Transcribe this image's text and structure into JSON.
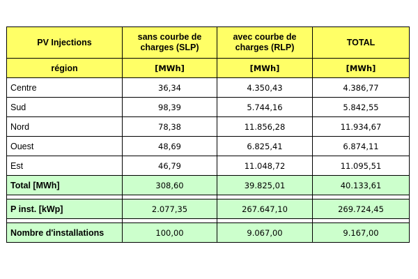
{
  "table": {
    "header": {
      "col1": "PV Injections",
      "col2": "sans courbe de charges (SLP)",
      "col3": "avec courbe de charges (RLP)",
      "col4": "TOTAL"
    },
    "subheader": {
      "col1": "région",
      "col2": "[MWh]",
      "col3": "[MWh]",
      "col4": "[MWh]"
    },
    "rows": [
      {
        "region": "Centre",
        "slp": "36,34",
        "rlp": "4.350,43",
        "total": "4.386,77"
      },
      {
        "region": "Sud",
        "slp": "98,39",
        "rlp": "5.744,16",
        "total": "5.842,55"
      },
      {
        "region": "Nord",
        "slp": "78,38",
        "rlp": "11.856,28",
        "total": "11.934,67"
      },
      {
        "region": "Ouest",
        "slp": "48,69",
        "rlp": "6.825,41",
        "total": "6.874,11"
      },
      {
        "region": "Est",
        "slp": "46,79",
        "rlp": "11.048,72",
        "total": "11.095,51"
      }
    ],
    "total_row": {
      "label": "Total [MWh]",
      "slp": "308,60",
      "rlp": "39.825,01",
      "total": "40.133,61"
    },
    "pinst_row": {
      "label": "P inst. [kWp]",
      "slp": "2.077,35",
      "rlp": "267.647,10",
      "total": "269.724,45"
    },
    "count_row": {
      "label": "Nombre d'installations",
      "slp": "100,00",
      "rlp": "9.067,00",
      "total": "9.167,00"
    }
  },
  "colors": {
    "header": "#ffff66",
    "summary": "#ccffcc"
  }
}
